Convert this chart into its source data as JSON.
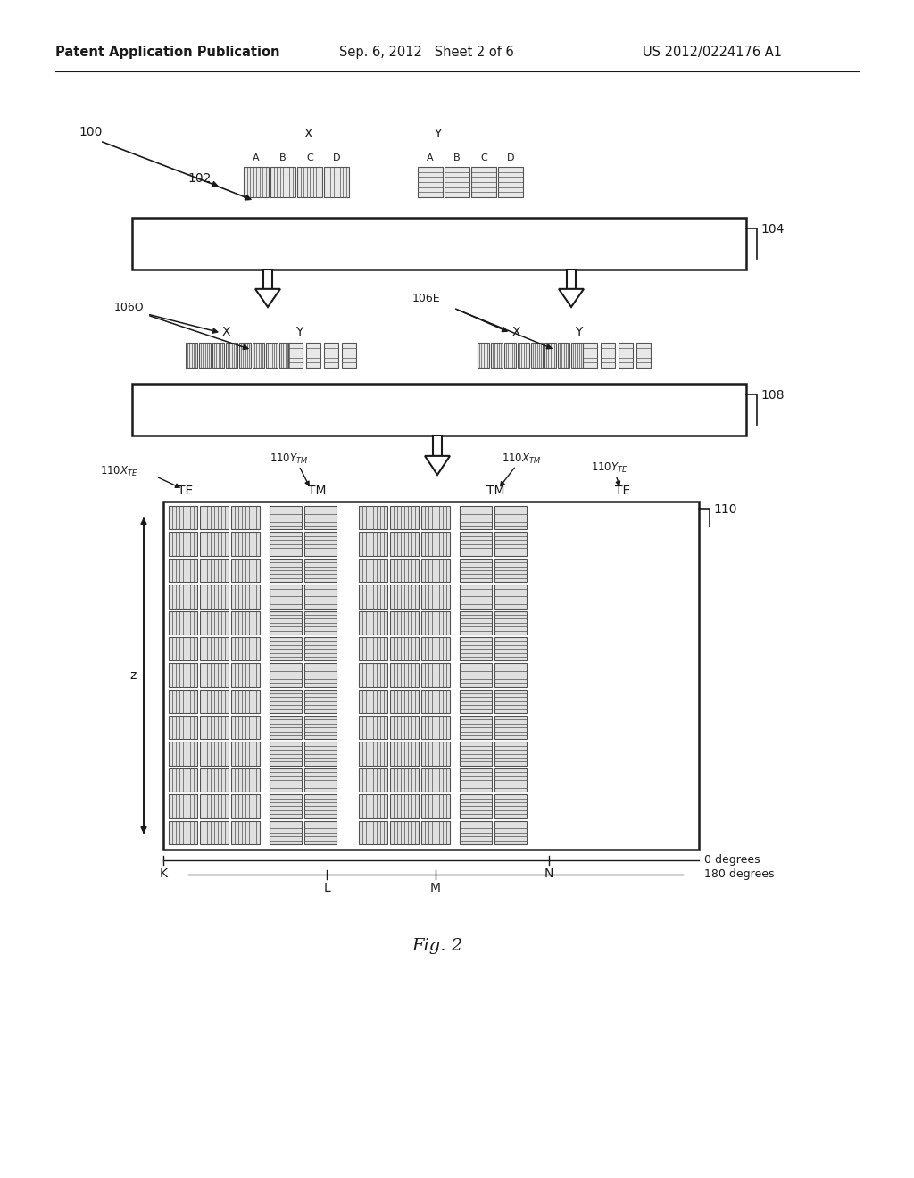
{
  "bg_color": "#ffffff",
  "text_color": "#1a1a1a",
  "header_left": "Patent Application Publication",
  "header_center": "Sep. 6, 2012   Sheet 2 of 6",
  "header_right": "US 2012/0224176 A1",
  "fig_label": "Fig. 2"
}
